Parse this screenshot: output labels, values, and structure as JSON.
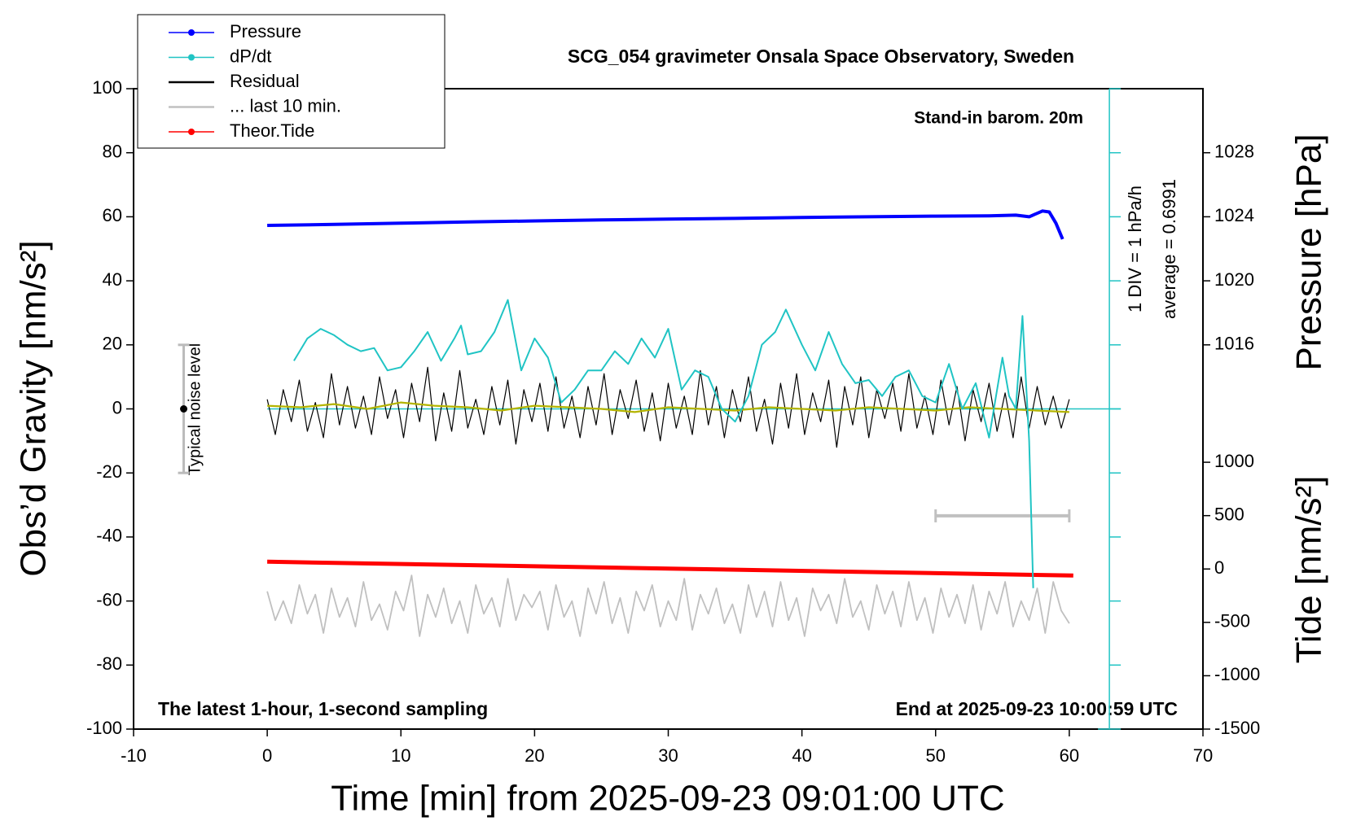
{
  "chart_data": {
    "type": "line",
    "title": "SCG_054 gravimeter Onsala Space Observatory, Sweden",
    "x_label": "Time [min] from 2025-09-23 09:01:00 UTC",
    "y_label": "Obs’d Gravity [nm/s²]",
    "y2_label": "Pressure [hPa]",
    "y3_label": "Tide [nm/s²]",
    "annotations": [
      "Stand-in barom. 20m",
      "1 DIV = 1 hPa/h",
      "average = 0.6991",
      "The latest 1-hour, 1-second sampling",
      "End at 2025-09-23 10:00:59 UTC",
      "Typical noise level"
    ],
    "xlim": [
      -10,
      70
    ],
    "xticks": [
      -10,
      0,
      10,
      20,
      30,
      40,
      50,
      60,
      70
    ],
    "ylim": [
      -100,
      100
    ],
    "yticks": [
      -100,
      -80,
      -60,
      -40,
      -20,
      0,
      20,
      40,
      60,
      80,
      100
    ],
    "y2lim": [
      992,
      1032
    ],
    "y2ticks": [
      1016,
      1020,
      1024,
      1028
    ],
    "y3lim": [
      -1500,
      4500
    ],
    "y3ticks": [
      -1500,
      -1000,
      -500,
      0,
      500,
      1000
    ],
    "y4lim": [
      -4.3009,
      5.6991
    ],
    "y4ticks": [
      -4.3009,
      -3.3009,
      -2.3009,
      -1.3009,
      -0.3009,
      0.6991,
      1.6991,
      2.6991,
      3.6991,
      4.6991,
      5.6991
    ],
    "noise_bar": {
      "low": -20,
      "center": 0,
      "high": 20
    },
    "window_bar": [
      50,
      60
    ],
    "x": [
      0,
      0.6,
      1.2,
      1.8,
      2.4,
      3,
      3.6,
      4.2,
      4.8,
      5.4,
      6,
      6.6,
      7.2,
      7.8,
      8.4,
      9,
      9.6,
      10.2,
      10.8,
      11.4,
      12,
      12.6,
      13.2,
      13.8,
      14.4,
      15,
      15.6,
      16.2,
      16.8,
      17.4,
      18,
      18.6,
      19.2,
      19.8,
      20.4,
      21,
      21.6,
      22.2,
      22.8,
      23.4,
      24,
      24.6,
      25.2,
      25.8,
      26.4,
      27,
      27.6,
      28.2,
      28.8,
      29.4,
      30,
      30.6,
      31.2,
      31.8,
      32.4,
      33,
      33.6,
      34.2,
      34.8,
      35.4,
      36,
      36.6,
      37.2,
      37.8,
      38.4,
      39,
      39.6,
      40.2,
      40.8,
      41.4,
      42,
      42.6,
      43.2,
      43.8,
      44.4,
      45,
      45.6,
      46.2,
      46.8,
      47.4,
      48,
      48.6,
      49.2,
      49.8,
      50.4,
      51,
      51.6,
      52.2,
      52.8,
      53.4,
      54,
      54.6,
      55.2,
      55.8,
      56.4,
      57,
      57.6,
      58.2,
      58.8,
      59.4,
      60
    ],
    "series": [
      {
        "name": "Pressure",
        "color": "#0000ff",
        "axis": "y2",
        "dots": true,
        "x": [
          0,
          5,
          10,
          15,
          20,
          25,
          30,
          35,
          40,
          45,
          50,
          54,
          56,
          57,
          58,
          58.5,
          59,
          59.5
        ],
        "values": [
          1023.46,
          1023.52,
          1023.6,
          1023.68,
          1023.74,
          1023.8,
          1023.86,
          1023.9,
          1023.96,
          1024.0,
          1024.04,
          1024.06,
          1024.1,
          1024.0,
          1024.36,
          1024.3,
          1023.6,
          1022.6
        ]
      },
      {
        "name": "dP/dt",
        "color": "#20c4c4",
        "axis": "y4",
        "dots": true,
        "x": [
          2,
          3,
          4,
          5,
          6,
          7,
          8,
          9,
          10,
          11,
          12,
          13,
          14,
          14.5,
          15,
          16,
          17,
          18,
          19,
          20,
          21,
          22,
          23,
          24,
          25,
          26,
          27,
          28,
          29,
          30,
          31,
          32,
          33,
          34,
          35,
          36,
          37,
          38,
          38.8,
          40,
          41,
          42,
          43,
          44,
          45,
          46,
          47,
          48,
          49,
          50,
          51,
          52,
          53,
          54,
          55,
          55.5,
          56,
          56.5,
          57,
          57.3
        ],
        "values": [
          1.45,
          1.8,
          1.95,
          1.85,
          1.7,
          1.6,
          1.65,
          1.3,
          1.35,
          1.6,
          1.9,
          1.45,
          1.8,
          2.0,
          1.55,
          1.6,
          1.9,
          2.4,
          1.3,
          1.8,
          1.5,
          0.8,
          1.0,
          1.3,
          1.3,
          1.6,
          1.4,
          1.8,
          1.5,
          1.95,
          1.0,
          1.3,
          1.2,
          0.7,
          0.5,
          0.9,
          1.7,
          1.9,
          2.25,
          1.7,
          1.3,
          1.9,
          1.4,
          1.1,
          1.15,
          0.9,
          1.2,
          1.3,
          0.9,
          0.8,
          1.4,
          0.7,
          1.1,
          0.25,
          1.5,
          0.9,
          0.7,
          2.15,
          0.2,
          -2.1
        ]
      },
      {
        "name": "Residual",
        "color": "#000000",
        "axis": "y",
        "values": [
          3,
          -8,
          6,
          -4,
          9,
          -7,
          2,
          -9,
          11,
          -5,
          7,
          -6,
          4,
          -8,
          10,
          -3,
          6,
          -9,
          8,
          -4,
          13,
          -10,
          5,
          -7,
          12,
          -6,
          3,
          -8,
          7,
          -5,
          9,
          -11,
          6,
          -4,
          8,
          -7,
          10,
          -6,
          4,
          -9,
          7,
          -5,
          11,
          -8,
          6,
          -3,
          9,
          -7,
          5,
          -10,
          8,
          -6,
          4,
          -8,
          12,
          -5,
          7,
          -9,
          6,
          -4,
          10,
          -7,
          3,
          -11,
          8,
          -6,
          11,
          -8,
          5,
          -4,
          9,
          -12,
          7,
          -5,
          10,
          -9,
          6,
          -3,
          8,
          -7,
          11,
          -6,
          4,
          -8,
          9,
          -5,
          7,
          -10,
          6,
          -4,
          8,
          -7,
          5,
          -9,
          10,
          -6,
          7,
          -5,
          4,
          -6,
          3
        ]
      },
      {
        "color": "#b4b400",
        "axis": "y",
        "x": [
          0,
          2.5,
          5,
          7.5,
          10,
          12.5,
          15,
          17.5,
          20,
          22.5,
          25,
          27.5,
          30,
          32.5,
          35,
          37.5,
          40,
          42.5,
          45,
          47.5,
          50,
          52.5,
          55,
          57.5,
          60
        ],
        "values": [
          1,
          0.5,
          1.5,
          0,
          2,
          1,
          0.5,
          -0.5,
          1,
          0.5,
          0,
          -1,
          0.5,
          0,
          -0.5,
          0.5,
          0,
          -0.5,
          0.5,
          0,
          -0.5,
          0.5,
          0,
          -0.5,
          -1
        ]
      },
      {
        "name": "... last 10 min.",
        "color": "#c0c0c0",
        "axis": "y",
        "values": [
          -57,
          -66,
          -60,
          -67,
          -55,
          -64,
          -58,
          -70,
          -56,
          -65,
          -59,
          -68,
          -54,
          -66,
          -61,
          -69,
          -57,
          -63,
          -52,
          -71,
          -58,
          -65,
          -56,
          -67,
          -60,
          -70,
          -55,
          -64,
          -59,
          -68,
          -53,
          -66,
          -58,
          -62,
          -57,
          -69,
          -55,
          -65,
          -60,
          -71,
          -56,
          -64,
          -54,
          -67,
          -59,
          -70,
          -57,
          -63,
          -55,
          -68,
          -60,
          -66,
          -53,
          -69,
          -58,
          -64,
          -56,
          -67,
          -61,
          -70,
          -55,
          -65,
          -57,
          -68,
          -54,
          -66,
          -59,
          -71,
          -56,
          -63,
          -58,
          -67,
          -53,
          -65,
          -60,
          -69,
          -55,
          -64,
          -57,
          -68,
          -54,
          -66,
          -59,
          -70,
          -56,
          -65,
          -58,
          -67,
          -55,
          -69,
          -57,
          -64,
          -54,
          -68,
          -60,
          -66,
          -56,
          -70,
          -54,
          -63,
          -67
        ]
      },
      {
        "name": "Theor.Tide",
        "color": "#ff0000",
        "axis": "y3",
        "dots": true,
        "x": [
          0,
          30,
          60.3
        ],
        "values": [
          68,
          4,
          -61
        ]
      }
    ]
  }
}
